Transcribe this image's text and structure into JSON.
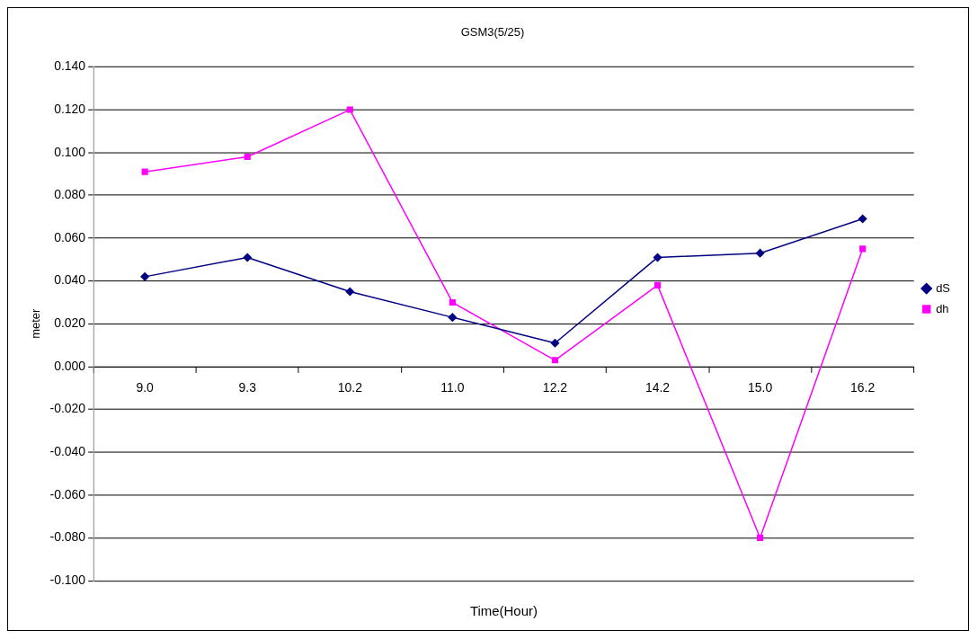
{
  "chart_data": {
    "type": "line",
    "title": "GSM3(5/25)",
    "xlabel": "Time(Hour)",
    "ylabel": "meter",
    "categories": [
      "9.0",
      "9.3",
      "10.2",
      "11.0",
      "12.2",
      "14.2",
      "15.0",
      "16.2"
    ],
    "series": [
      {
        "name": "dS",
        "color": "#000080",
        "marker": "diamond",
        "values": [
          0.042,
          0.051,
          0.035,
          0.023,
          0.011,
          0.051,
          0.053,
          0.069
        ]
      },
      {
        "name": "dh",
        "color": "#ff00ff",
        "marker": "square",
        "values": [
          0.091,
          0.098,
          0.12,
          0.03,
          0.003,
          0.038,
          -0.08,
          0.055
        ]
      }
    ],
    "ylim": [
      -0.1,
      0.14
    ],
    "yticks": [
      {
        "value": -0.1,
        "label": "-0.100"
      },
      {
        "value": -0.08,
        "label": "-0.080"
      },
      {
        "value": -0.06,
        "label": "-0.060"
      },
      {
        "value": -0.04,
        "label": "-0.040"
      },
      {
        "value": -0.02,
        "label": "-0.020"
      },
      {
        "value": 0,
        "label": "0.000"
      },
      {
        "value": 0.02,
        "label": "0.020"
      },
      {
        "value": 0.04,
        "label": "0.040"
      },
      {
        "value": 0.06,
        "label": "0.060"
      },
      {
        "value": 0.08,
        "label": "0.080"
      },
      {
        "value": 0.1,
        "label": "0.100"
      },
      {
        "value": 0.12,
        "label": "0.120"
      },
      {
        "value": 0.14,
        "label": "0.140"
      }
    ],
    "grid": "y",
    "legend": "right",
    "line_style": "solid"
  }
}
